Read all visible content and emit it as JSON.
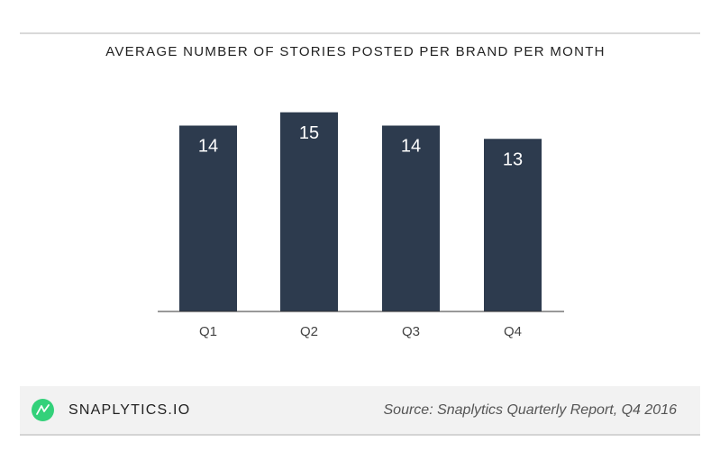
{
  "chart_data": {
    "type": "bar",
    "title": "AVERAGE NUMBER OF STORIES POSTED PER BRAND PER MONTH",
    "categories": [
      "Q1",
      "Q2",
      "Q3",
      "Q4"
    ],
    "values": [
      14,
      15,
      14,
      13
    ],
    "data_labels": [
      "14",
      "15",
      "14",
      "13"
    ],
    "ylim": [
      0,
      16
    ],
    "grid": false,
    "colors": {
      "bar": "#2d3b4e",
      "bar_label": "#ffffff",
      "axis": "#333333",
      "tick_label": "#444444"
    }
  },
  "footer": {
    "brand": "SNAPLYTICS.IO",
    "source": "Source: Snaplytics Quarterly Report, Q4 2016",
    "logo_icon": "snaplytics-logo-icon",
    "logo_color": "#33d17a"
  }
}
